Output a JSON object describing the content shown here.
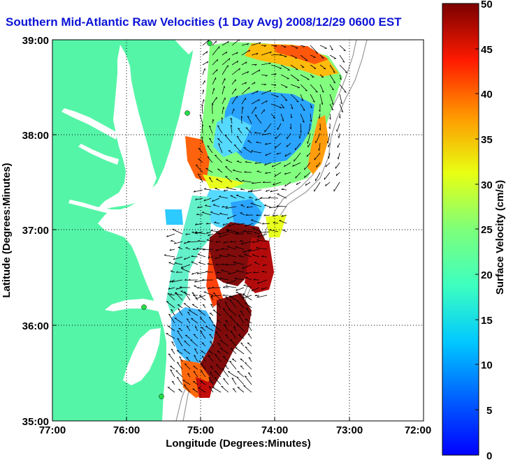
{
  "title": "Southern Mid-Atlantic Raw Velocities (1 Day Avg) 2008/12/29 0600 EST",
  "colors": {
    "land": "#55f5a8",
    "title": "#0b13d6",
    "background": "#ffffff",
    "station": "#22dd44"
  },
  "map": {
    "xlabel": "Longitude (Degrees:Minutes)",
    "ylabel": "Latitude (Degrees:Minutes)",
    "lon_range": [
      -77,
      -72
    ],
    "lat_range": [
      35,
      39
    ],
    "x_ticks": [
      "77:00",
      "76:00",
      "75:00",
      "74:00",
      "73:00",
      "72:00"
    ],
    "y_ticks": [
      "39:00",
      "38:00",
      "37:00",
      "36:00",
      "35:00"
    ],
    "grid": "dotted"
  },
  "colorbar": {
    "label": "Surface Velocity (cm/s)",
    "min": 0,
    "max": 50,
    "ticks": [
      "0",
      "5",
      "10",
      "15",
      "20",
      "25",
      "30",
      "35",
      "40",
      "45",
      "50"
    ],
    "colormap": "jet"
  }
}
